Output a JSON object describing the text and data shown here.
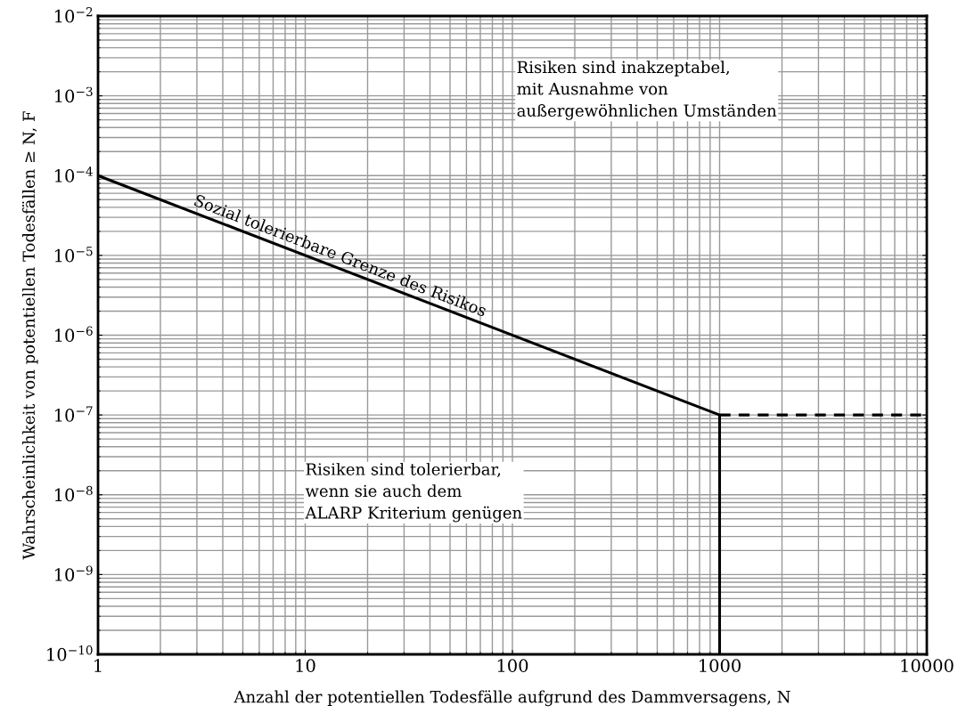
{
  "chart_data": {
    "type": "line",
    "xlabel": "Anzahl der potentiellen Todesfälle aufgrund des Dammversagens, N",
    "ylabel": "Wahrscheinlichkeit von potentiellen Todesfällen ≥ N, F",
    "log": "xy",
    "grid": true,
    "marker": "none",
    "xlim": [
      1,
      10000
    ],
    "xticks": [
      1,
      10,
      100,
      1000,
      10000
    ],
    "ylim": [
      1e-10,
      0.01
    ],
    "yticks": [
      {
        "value": 1e-10,
        "label": "10$^{−10}$"
      },
      {
        "value": 1e-09,
        "label": "10$^{−9}$"
      },
      {
        "value": 1e-08,
        "label": "10$^{−8}$"
      },
      {
        "value": 1e-07,
        "label": "10$^{−7}$"
      },
      {
        "value": 1e-06,
        "label": "10$^{−6}$"
      },
      {
        "value": 1e-05,
        "label": "10$^{−5}$"
      },
      {
        "value": 0.0001,
        "label": "10$^{−4}$"
      },
      {
        "value": 0.001,
        "label": "10$^{−3}$"
      },
      {
        "value": 0.01,
        "label": "10$^{−2}$"
      }
    ],
    "series": [
      {
        "x": [
          1,
          1000,
          1000
        ],
        "values": [
          0.0001,
          1e-07,
          1e-10
        ],
        "color": "#000000",
        "line_style": "solid"
      },
      {
        "x": [
          1000,
          10000
        ],
        "values": [
          1e-07,
          1e-07
        ],
        "color": "#000000",
        "line_style": "dashed"
      }
    ],
    "annotations": [
      "Sozial tolerierbare Grenze des Risikos",
      "Risiken sind inakzeptabel,\nmit Ausnahme von\naußergewöhnlichen Umständen",
      "Risiken sind tolerierbar,\nwenn sie auch dem\nALARP Kriterium genügen"
    ]
  }
}
